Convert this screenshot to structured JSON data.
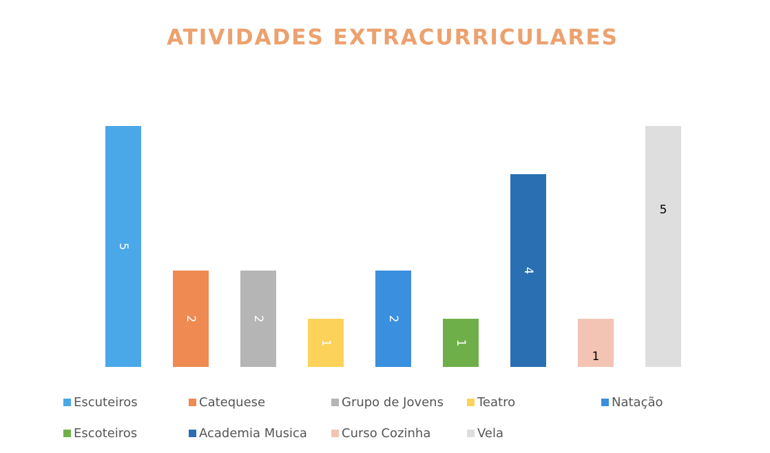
{
  "chart_data": {
    "type": "bar",
    "title": "ATIVIDADES EXTRACURRICULARES",
    "series": [
      {
        "name": "Escuteiros",
        "color": "#4aa8e8",
        "label_color": "#ffffff",
        "values": [
          5
        ]
      },
      {
        "name": "Catequese",
        "color": "#ee8a52",
        "label_color": "#ffffff",
        "values": [
          2
        ]
      },
      {
        "name": "Grupo de Jovens",
        "color": "#b5b5b5",
        "label_color": "#ffffff",
        "values": [
          2
        ]
      },
      {
        "name": "Teatro",
        "color": "#fcd25a",
        "label_color": "#ffffff",
        "values": [
          1
        ]
      },
      {
        "name": "Natação",
        "color": "#3a8fdf",
        "label_color": "#ffffff",
        "values": [
          2
        ]
      },
      {
        "name": "Escoteiros",
        "color": "#6faf4a",
        "label_color": "#ffffff",
        "values": [
          1
        ]
      },
      {
        "name": "Academia Musica",
        "color": "#2a6fb2",
        "label_color": "#ffffff",
        "values": [
          4
        ]
      },
      {
        "name": "Curso Cozinha",
        "color": "#f3c4b3",
        "label_color": "#000000",
        "values": [
          1
        ]
      },
      {
        "name": "Vela",
        "color": "#dedede",
        "label_color": "#000000",
        "values": [
          5
        ]
      }
    ]
  }
}
